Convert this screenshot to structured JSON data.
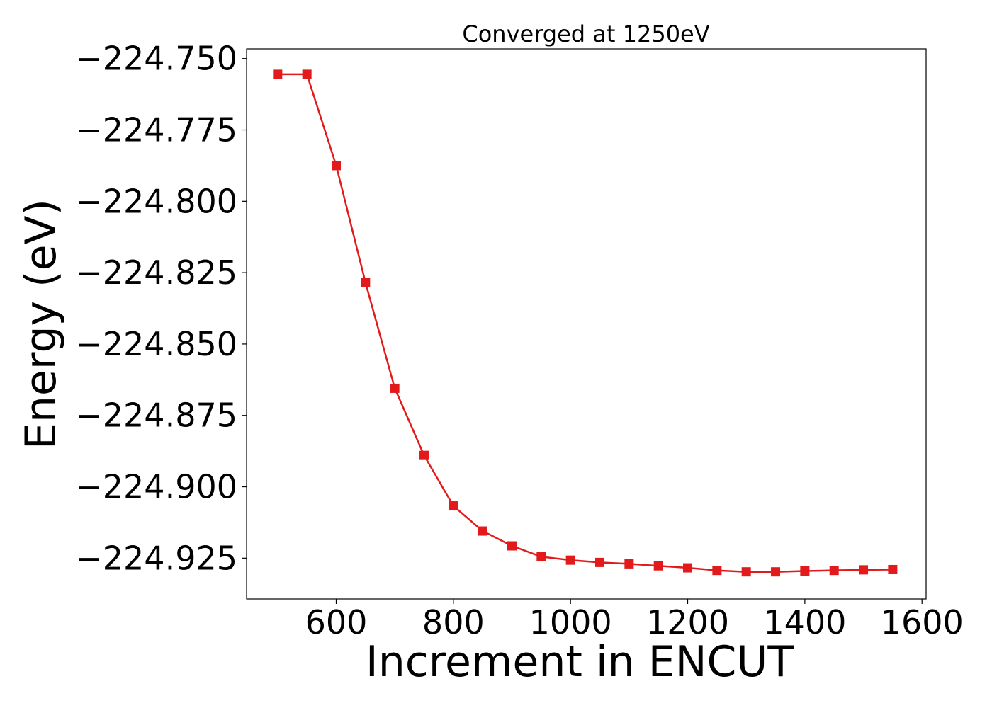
{
  "chart_data": {
    "type": "line",
    "title": "Converged at 1250eV",
    "xlabel": "Increment in ENCUT",
    "ylabel": "Energy (eV)",
    "xlim": [
      447,
      1607
    ],
    "ylim": [
      -224.9393,
      -224.7466
    ],
    "x_ticks": [
      600,
      800,
      1000,
      1200,
      1400,
      1600
    ],
    "x_tick_labels": [
      "600",
      "800",
      "1000",
      "1200",
      "1400",
      "1600"
    ],
    "y_ticks": [
      -224.75,
      -224.775,
      -224.8,
      -224.825,
      -224.85,
      -224.875,
      -224.9,
      -224.925
    ],
    "y_tick_labels": [
      "−224.750",
      "−224.775",
      "−224.800",
      "−224.825",
      "−224.850",
      "−224.875",
      "−224.900",
      "−224.925"
    ],
    "grid": false,
    "series": [
      {
        "color": "#e31a1c",
        "marker": "square",
        "x": [
          500,
          550,
          600,
          650,
          700,
          750,
          800,
          850,
          900,
          950,
          1000,
          1050,
          1100,
          1150,
          1200,
          1250,
          1300,
          1350,
          1400,
          1450,
          1500,
          1550
        ],
        "y": [
          -224.7555,
          -224.7555,
          -224.7875,
          -224.8285,
          -224.8655,
          -224.889,
          -224.9067,
          -224.9155,
          -224.9207,
          -224.9245,
          -224.9257,
          -224.9265,
          -224.927,
          -224.9277,
          -224.9284,
          -224.9293,
          -224.9298,
          -224.9298,
          -224.9295,
          -224.9293,
          -224.9291,
          -224.929
        ]
      }
    ]
  }
}
